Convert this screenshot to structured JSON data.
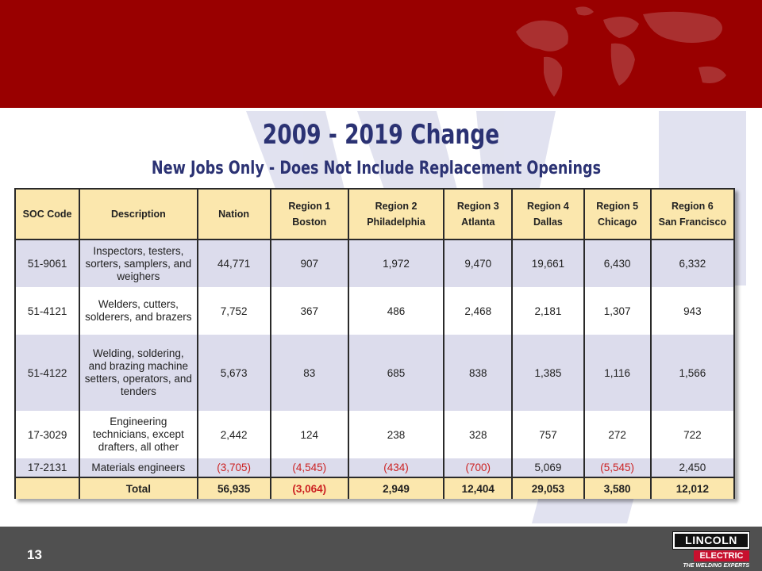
{
  "slide": {
    "title": "2009 - 2019 Change",
    "subtitle": "New Jobs Only - Does Not Include Replacement Openings",
    "page_number": "13"
  },
  "logo": {
    "line1": "LINCOLN",
    "line2": "ELECTRIC",
    "tagline": "THE WELDING EXPERTS"
  },
  "table": {
    "headers": [
      {
        "line1": "SOC Code",
        "line2": ""
      },
      {
        "line1": "Description",
        "line2": ""
      },
      {
        "line1": "Nation",
        "line2": ""
      },
      {
        "line1": "Region 1",
        "line2": "Boston"
      },
      {
        "line1": "Region 2",
        "line2": "Philadelphia"
      },
      {
        "line1": "Region 3",
        "line2": "Atlanta"
      },
      {
        "line1": "Region 4",
        "line2": "Dallas"
      },
      {
        "line1": "Region 5",
        "line2": "Chicago"
      },
      {
        "line1": "Region 6",
        "line2": "San Francisco"
      }
    ],
    "rows": [
      {
        "soc": "51-9061",
        "desc": "Inspectors, testers, sorters, samplers, and weighers",
        "nation": "44,771",
        "r1": "907",
        "r2": "1,972",
        "r3": "9,470",
        "r4": "19,661",
        "r5": "6,430",
        "r6": "6,332"
      },
      {
        "soc": "51-4121",
        "desc": "Welders, cutters, solderers, and brazers",
        "nation": "7,752",
        "r1": "367",
        "r2": "486",
        "r3": "2,468",
        "r4": "2,181",
        "r5": "1,307",
        "r6": "943"
      },
      {
        "soc": "51-4122",
        "desc": "Welding, soldering, and brazing machine setters, operators, and tenders",
        "nation": "5,673",
        "r1": "83",
        "r2": "685",
        "r3": "838",
        "r4": "1,385",
        "r5": "1,116",
        "r6": "1,566"
      },
      {
        "soc": "17-3029",
        "desc": "Engineering technicians, except drafters, all other",
        "nation": "2,442",
        "r1": "124",
        "r2": "238",
        "r3": "328",
        "r4": "757",
        "r5": "272",
        "r6": "722"
      },
      {
        "soc": "17-2131",
        "desc": "Materials engineers",
        "nation": "(3,705)",
        "r1": "(4,545)",
        "r2": "(434)",
        "r3": "(700)",
        "r4": "5,069",
        "r5": "(5,545)",
        "r6": "2,450"
      }
    ],
    "total": {
      "label": "Total",
      "nation": "56,935",
      "r1": "(3,064)",
      "r2": "2,949",
      "r3": "12,404",
      "r4": "29,053",
      "r5": "3,580",
      "r6": "12,012"
    }
  },
  "colors": {
    "banner": "#990000",
    "header_fill": "#fbe7ad",
    "band_fill": "#dcdcec",
    "negative_text": "#cc2222",
    "title_text": "#2b3273",
    "footer": "#505050"
  }
}
